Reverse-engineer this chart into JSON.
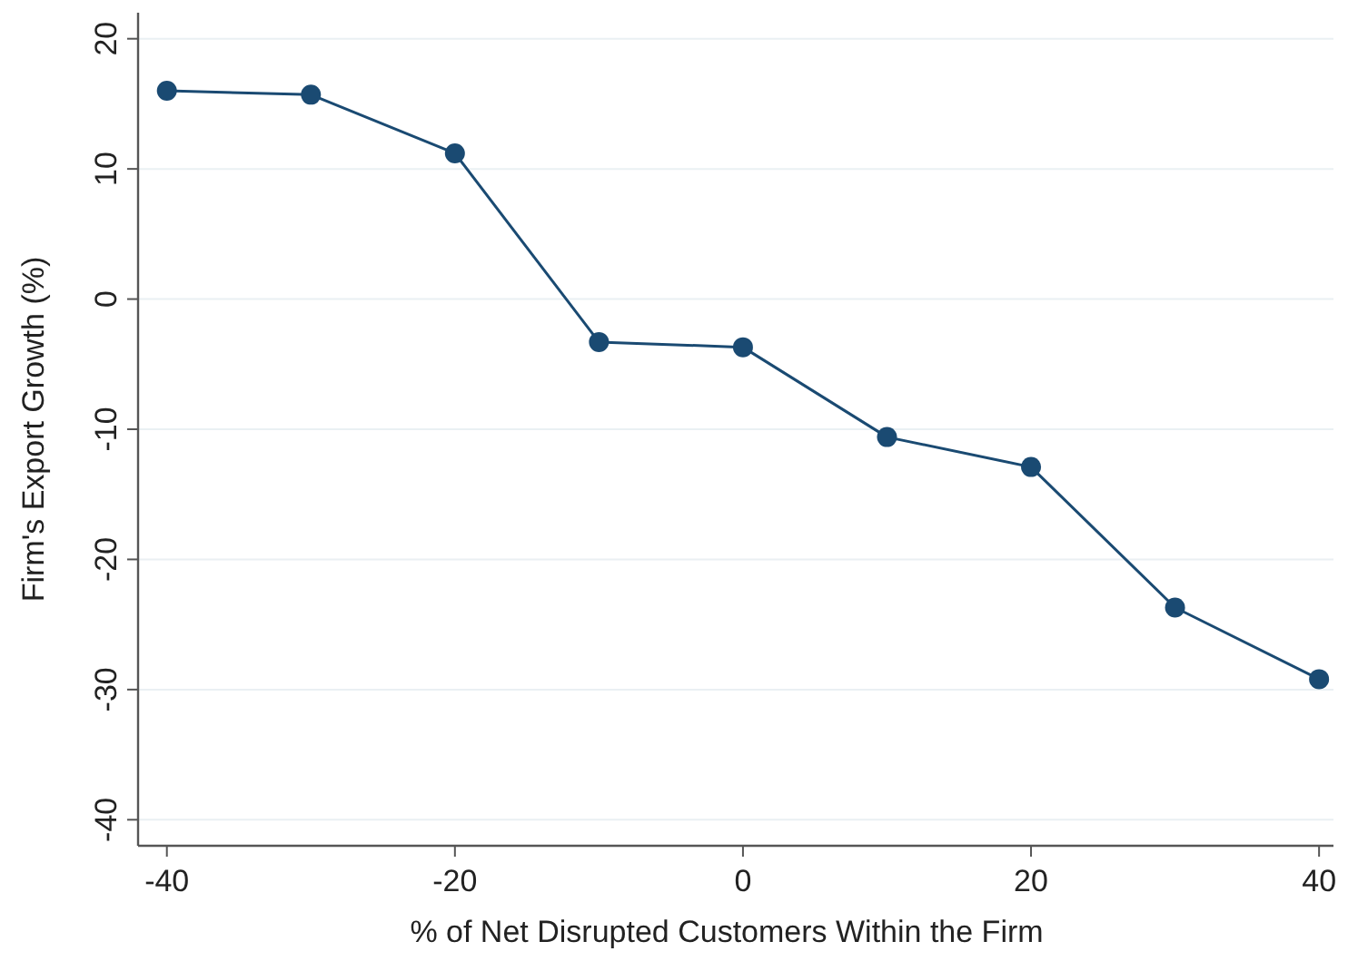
{
  "chart_data": {
    "type": "line",
    "xlabel": "% of Net Disrupted Customers Within the Firm",
    "ylabel": "Firm's Export Growth (%)",
    "x": [
      -40,
      -30,
      -20,
      -10,
      0,
      10,
      20,
      30,
      40
    ],
    "series": [
      {
        "color": "#1a4a72",
        "values": [
          16.0,
          15.7,
          11.2,
          -3.3,
          -3.7,
          -10.6,
          -12.9,
          -23.7,
          -29.2
        ]
      }
    ],
    "xlim": [
      -42,
      41
    ],
    "ylim": [
      -42,
      22
    ],
    "xticks": [
      -40,
      -20,
      0,
      20,
      40
    ],
    "yticks": [
      -40,
      -30,
      -20,
      -10,
      0,
      10,
      20
    ],
    "grid": "y",
    "marker": "circle",
    "line_style": "solid"
  }
}
